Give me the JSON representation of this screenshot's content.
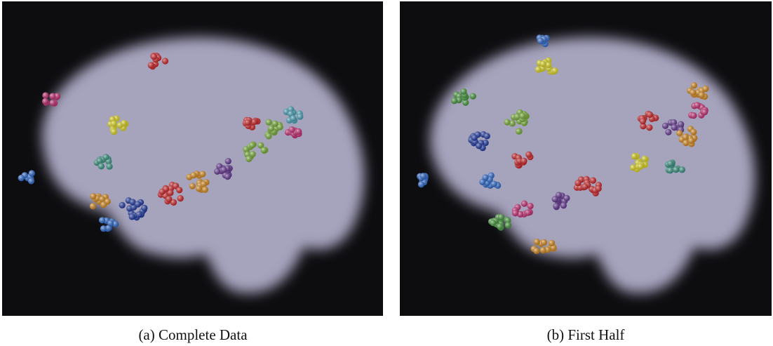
{
  "panels": [
    {
      "caption": "(a) Complete Data"
    },
    {
      "caption": "(b) First Half"
    }
  ]
}
